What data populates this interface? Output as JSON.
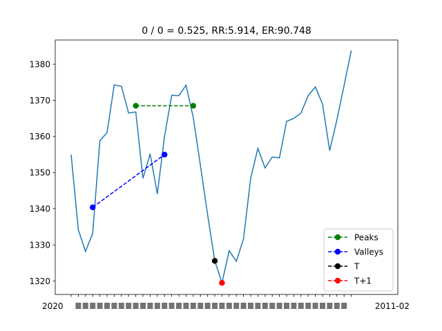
{
  "chart_data": {
    "type": "line",
    "title": "0 / 0 = 0.525, RR:5.914, ER:90.748",
    "xlabel": "",
    "ylabel": "",
    "ylim": [
      1316.3,
      1386.7
    ],
    "yticks": [
      1320,
      1330,
      1340,
      1350,
      1360,
      1370,
      1380
    ],
    "xtick_label_first": "2020",
    "xtick_label_last": "2011-02",
    "price_series": {
      "name": "price",
      "color": "#1f77b4",
      "values": [
        1355.0,
        1334.2,
        1328.2,
        1333.2,
        1358.8,
        1361.1,
        1374.3,
        1373.9,
        1366.5,
        1366.8,
        1348.4,
        1355.2,
        1344.1,
        1360.0,
        1371.4,
        1371.3,
        1374.2,
        1365.3,
        1352.0,
        1338.4,
        1325.6,
        1319.5,
        1328.4,
        1325.5,
        1331.7,
        1348.5,
        1356.7,
        1351.3,
        1354.3,
        1354.1,
        1364.2,
        1365.0,
        1366.5,
        1371.3,
        1373.7,
        1369.0,
        1356.1,
        1364.6,
        1374.1,
        1383.8
      ]
    },
    "overlays": [
      {
        "name": "Peaks",
        "color": "#008000",
        "dashed": true,
        "points": [
          [
            9,
            1368.5
          ],
          [
            17,
            1368.5
          ]
        ]
      },
      {
        "name": "Valleys",
        "color": "#0000ff",
        "dashed": true,
        "points": [
          [
            3,
            1340.4
          ],
          [
            13,
            1355.0
          ]
        ]
      },
      {
        "name": "T",
        "color": "#000000",
        "dashed": true,
        "points": [
          [
            20,
            1325.6
          ]
        ]
      },
      {
        "name": "T+1",
        "color": "#ff0000",
        "dashed": true,
        "points": [
          [
            21,
            1319.5
          ]
        ]
      }
    ],
    "legend": {
      "position": "bottom-right"
    }
  }
}
